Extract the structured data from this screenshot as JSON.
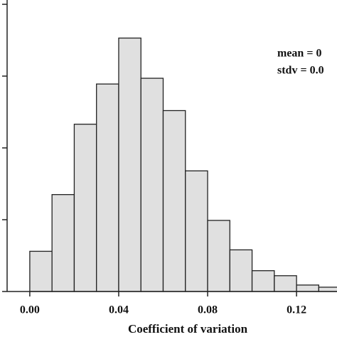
{
  "chart_data": {
    "type": "histogram",
    "xlabel": "Coefficient of variation",
    "bins": [
      0.0,
      0.01,
      0.02,
      0.03,
      0.04,
      0.05,
      0.06,
      0.07,
      0.08,
      0.09,
      0.1,
      0.11,
      0.12,
      0.13,
      0.14
    ],
    "values": [
      0.56,
      1.35,
      2.33,
      2.89,
      3.53,
      2.97,
      2.52,
      1.68,
      0.99,
      0.58,
      0.29,
      0.22,
      0.09,
      0.06
    ],
    "color": "#e0e0e0",
    "xlim": [
      -0.0102,
      0.1382
    ],
    "xticks": [
      {
        "value": 0,
        "label": "0.00"
      },
      0.04,
      0.08,
      0.12
    ],
    "ylim": [
      0,
      4.06
    ],
    "yticks": [
      0,
      1,
      2,
      3,
      4
    ],
    "annotations": [
      "mean = 0",
      "stdv = 0.0"
    ]
  }
}
